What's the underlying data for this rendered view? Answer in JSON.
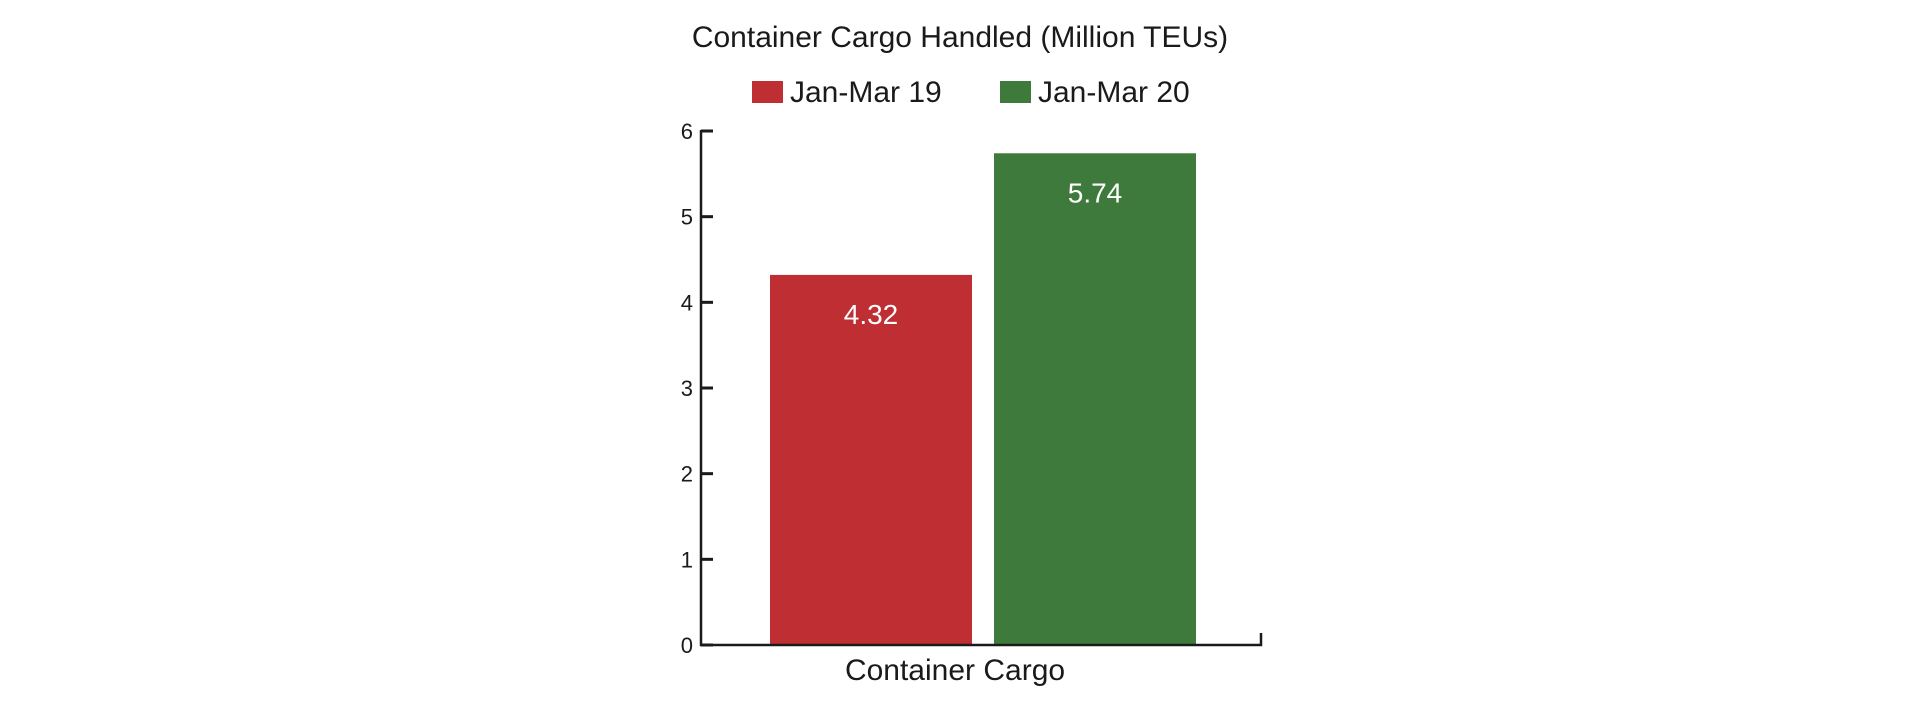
{
  "chart_data": {
    "type": "bar",
    "title": "Container Cargo Handled (Million TEUs)",
    "categories": [
      "Container Cargo"
    ],
    "series": [
      {
        "name": "Jan-Mar 19",
        "values": [
          4.32
        ],
        "color": "#bf2e33",
        "label": "4.32"
      },
      {
        "name": "Jan-Mar 20",
        "values": [
          5.74
        ],
        "color": "#3e7a3b",
        "label": "5.74"
      }
    ],
    "ylim": [
      0,
      6
    ],
    "yticks": [
      "0",
      "1",
      "2",
      "3",
      "4",
      "5",
      "6"
    ],
    "grid": false,
    "legend_position": "top"
  }
}
